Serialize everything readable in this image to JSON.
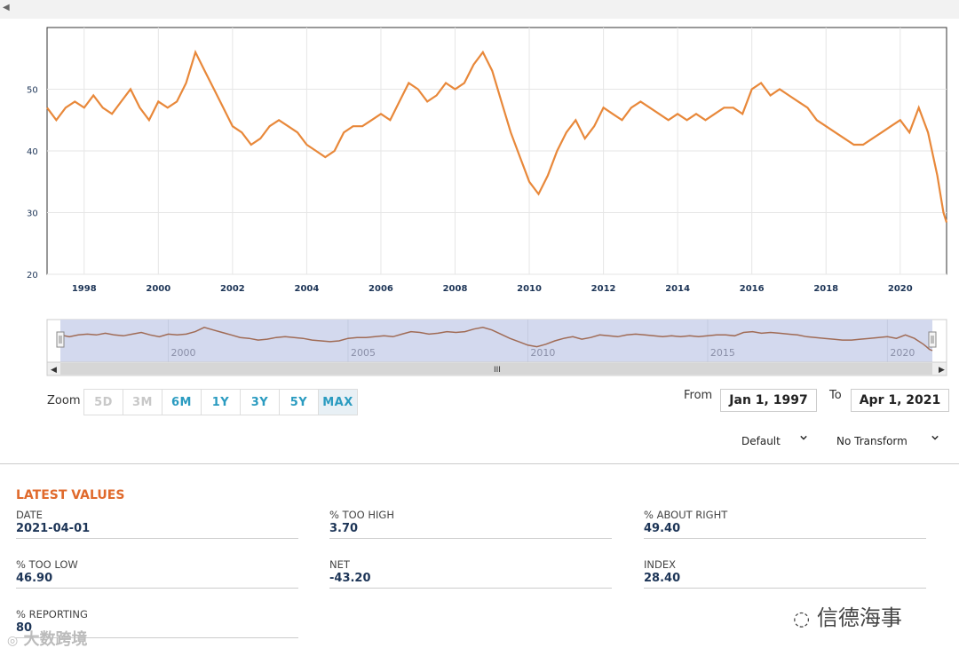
{
  "chart_data": {
    "type": "line",
    "x_axis": {
      "tick_labels": [
        "1998",
        "2000",
        "2002",
        "2004",
        "2006",
        "2008",
        "2010",
        "2012",
        "2014",
        "2016",
        "2018",
        "2020"
      ],
      "range": [
        "1997-01",
        "2021-04"
      ]
    },
    "y_axis": {
      "tick_labels": [
        "20",
        "30",
        "40",
        "50"
      ],
      "range": [
        20,
        60
      ]
    },
    "grid": true,
    "series": [
      {
        "color": "#e8883a",
        "points": [
          [
            "1997-01",
            47
          ],
          [
            "1997-04",
            45
          ],
          [
            "1997-07",
            47
          ],
          [
            "1997-10",
            48
          ],
          [
            "1998-01",
            47
          ],
          [
            "1998-04",
            49
          ],
          [
            "1998-07",
            47
          ],
          [
            "1998-10",
            46
          ],
          [
            "1999-01",
            48
          ],
          [
            "1999-04",
            50
          ],
          [
            "1999-07",
            47
          ],
          [
            "1999-10",
            45
          ],
          [
            "2000-01",
            48
          ],
          [
            "2000-04",
            47
          ],
          [
            "2000-07",
            48
          ],
          [
            "2000-10",
            51
          ],
          [
            "2001-01",
            56
          ],
          [
            "2001-04",
            53
          ],
          [
            "2001-07",
            50
          ],
          [
            "2001-10",
            47
          ],
          [
            "2002-01",
            44
          ],
          [
            "2002-04",
            43
          ],
          [
            "2002-07",
            41
          ],
          [
            "2002-10",
            42
          ],
          [
            "2003-01",
            44
          ],
          [
            "2003-04",
            45
          ],
          [
            "2003-07",
            44
          ],
          [
            "2003-10",
            43
          ],
          [
            "2004-01",
            41
          ],
          [
            "2004-04",
            40
          ],
          [
            "2004-07",
            39
          ],
          [
            "2004-10",
            40
          ],
          [
            "2005-01",
            43
          ],
          [
            "2005-04",
            44
          ],
          [
            "2005-07",
            44
          ],
          [
            "2005-10",
            45
          ],
          [
            "2006-01",
            46
          ],
          [
            "2006-04",
            45
          ],
          [
            "2006-07",
            48
          ],
          [
            "2006-10",
            51
          ],
          [
            "2007-01",
            50
          ],
          [
            "2007-04",
            48
          ],
          [
            "2007-07",
            49
          ],
          [
            "2007-10",
            51
          ],
          [
            "2008-01",
            50
          ],
          [
            "2008-04",
            51
          ],
          [
            "2008-07",
            54
          ],
          [
            "2008-10",
            56
          ],
          [
            "2009-01",
            53
          ],
          [
            "2009-04",
            48
          ],
          [
            "2009-07",
            43
          ],
          [
            "2009-10",
            39
          ],
          [
            "2010-01",
            35
          ],
          [
            "2010-04",
            33
          ],
          [
            "2010-07",
            36
          ],
          [
            "2010-10",
            40
          ],
          [
            "2011-01",
            43
          ],
          [
            "2011-04",
            45
          ],
          [
            "2011-07",
            42
          ],
          [
            "2011-10",
            44
          ],
          [
            "2012-01",
            47
          ],
          [
            "2012-04",
            46
          ],
          [
            "2012-07",
            45
          ],
          [
            "2012-10",
            47
          ],
          [
            "2013-01",
            48
          ],
          [
            "2013-04",
            47
          ],
          [
            "2013-07",
            46
          ],
          [
            "2013-10",
            45
          ],
          [
            "2014-01",
            46
          ],
          [
            "2014-04",
            45
          ],
          [
            "2014-07",
            46
          ],
          [
            "2014-10",
            45
          ],
          [
            "2015-01",
            46
          ],
          [
            "2015-04",
            47
          ],
          [
            "2015-07",
            47
          ],
          [
            "2015-10",
            46
          ],
          [
            "2016-01",
            50
          ],
          [
            "2016-04",
            51
          ],
          [
            "2016-07",
            49
          ],
          [
            "2016-10",
            50
          ],
          [
            "2017-01",
            49
          ],
          [
            "2017-04",
            48
          ],
          [
            "2017-07",
            47
          ],
          [
            "2017-10",
            45
          ],
          [
            "2018-01",
            44
          ],
          [
            "2018-04",
            43
          ],
          [
            "2018-07",
            42
          ],
          [
            "2018-10",
            41
          ],
          [
            "2019-01",
            41
          ],
          [
            "2019-04",
            42
          ],
          [
            "2019-07",
            43
          ],
          [
            "2019-10",
            44
          ],
          [
            "2020-01",
            45
          ],
          [
            "2020-04",
            43
          ],
          [
            "2020-07",
            47
          ],
          [
            "2020-10",
            43
          ],
          [
            "2021-01",
            36
          ],
          [
            "2021-02",
            33
          ],
          [
            "2021-03",
            30
          ],
          [
            "2021-04",
            28.4
          ]
        ]
      }
    ],
    "navigator": {
      "tick_labels": [
        "2000",
        "2005",
        "2010",
        "2015",
        "2020"
      ]
    }
  },
  "zoom": {
    "label": "Zoom",
    "buttons": [
      {
        "label": "5D",
        "state": "disabled"
      },
      {
        "label": "3M",
        "state": "disabled"
      },
      {
        "label": "6M",
        "state": "enabled"
      },
      {
        "label": "1Y",
        "state": "enabled"
      },
      {
        "label": "3Y",
        "state": "enabled"
      },
      {
        "label": "5Y",
        "state": "enabled"
      },
      {
        "label": "MAX",
        "state": "active"
      }
    ]
  },
  "range": {
    "from_label": "From",
    "from_value": "Jan 1, 1997",
    "to_label": "To",
    "to_value": "Apr 1, 2021"
  },
  "selectors": {
    "default_label": "Default",
    "transform_label": "No Transform"
  },
  "latest": {
    "title": "LATEST VALUES",
    "fields": [
      {
        "label": "DATE",
        "value": "2021-04-01"
      },
      {
        "label": "% TOO HIGH",
        "value": "3.70"
      },
      {
        "label": "% ABOUT RIGHT",
        "value": "49.40"
      },
      {
        "label": "% TOO LOW",
        "value": "46.90"
      },
      {
        "label": "NET",
        "value": "-43.20"
      },
      {
        "label": "INDEX",
        "value": "28.40"
      },
      {
        "label": "% REPORTING",
        "value": "80"
      }
    ]
  },
  "watermarks": {
    "left": "大数跨境",
    "right": "信德海事"
  },
  "colors": {
    "line": "#e8883a",
    "accent": "#2a9bc0",
    "title": "#e06a2c",
    "navigator_bg": "#d3d9ee"
  }
}
